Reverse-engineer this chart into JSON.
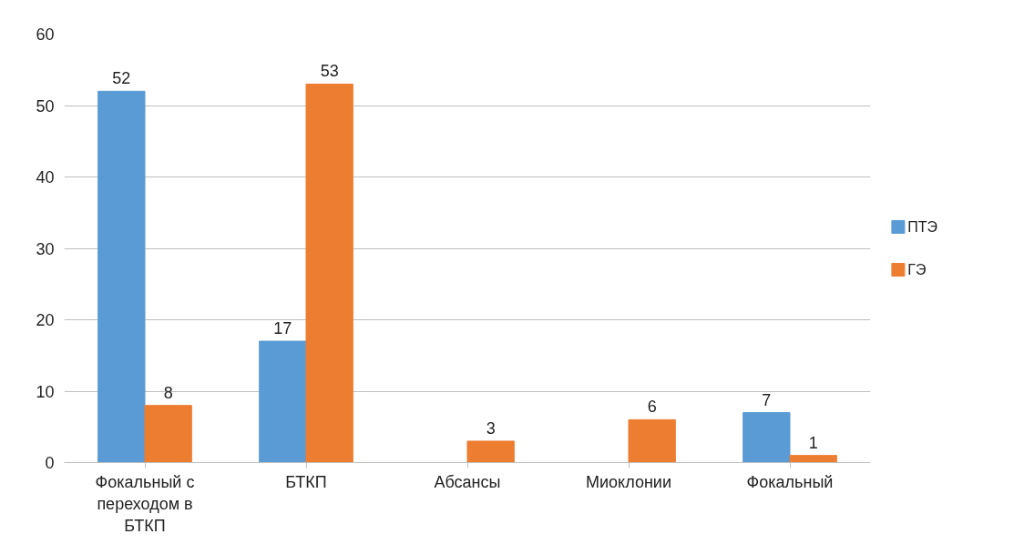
{
  "chart_data": {
    "type": "bar",
    "categories": [
      "Фокальный с переходом в БТКП",
      "БТКП",
      "Абсансы",
      "Миоклонии",
      "Фокальный"
    ],
    "series": [
      {
        "name": "ПТЭ",
        "color": "#5b9bd5",
        "values": [
          52,
          17,
          null,
          null,
          7
        ]
      },
      {
        "name": "ГЭ",
        "color": "#ed7d31",
        "values": [
          8,
          53,
          3,
          6,
          1
        ]
      }
    ],
    "ylim": [
      0,
      60
    ],
    "yticks": [
      0,
      10,
      20,
      30,
      40,
      50,
      60
    ],
    "grid": "y",
    "legend": "right",
    "data_labels": true
  }
}
